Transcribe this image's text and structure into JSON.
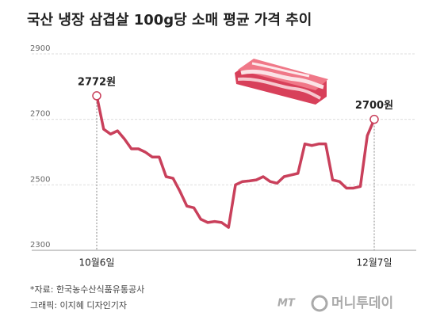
{
  "chart_data": {
    "type": "line",
    "title": "국산 냉장 삼겹살 100g당 소매 평균 가격 추이",
    "categories": [
      "10월6일",
      null,
      null,
      null,
      null,
      null,
      null,
      null,
      null,
      null,
      null,
      null,
      null,
      null,
      null,
      null,
      null,
      null,
      null,
      null,
      null,
      null,
      null,
      null,
      null,
      null,
      null,
      null,
      null,
      null,
      null,
      null,
      null,
      null,
      null,
      null,
      null,
      null,
      null,
      null,
      "12월7일"
    ],
    "series": [
      {
        "name": "삼겹살 소매 평균 가격",
        "color": "#c9405b",
        "values": [
          2772,
          2670,
          2655,
          2665,
          2640,
          2610,
          2610,
          2600,
          2585,
          2585,
          2525,
          2520,
          2480,
          2435,
          2430,
          2395,
          2385,
          2388,
          2385,
          2370,
          2500,
          2510,
          2512,
          2515,
          2525,
          2510,
          2505,
          2525,
          2530,
          2535,
          2625,
          2620,
          2625,
          2625,
          2515,
          2510,
          2490,
          2490,
          2495,
          2650,
          2700
        ],
        "value_labels": [
          "2772원",
          null,
          null,
          null,
          null,
          null,
          null,
          null,
          null,
          null,
          null,
          null,
          null,
          null,
          null,
          null,
          null,
          null,
          null,
          null,
          null,
          null,
          null,
          null,
          null,
          null,
          null,
          null,
          null,
          null,
          null,
          null,
          null,
          null,
          null,
          null,
          null,
          null,
          null,
          null,
          "2700원"
        ]
      }
    ],
    "ylim": [
      2300,
      2900
    ],
    "yticks": [
      2300,
      2500,
      2700,
      2900
    ],
    "grid": true,
    "source": "*자료: 한국농수산식품유통공사",
    "credit": "그래픽: 이지혜 디자인기자",
    "logo": {
      "mark": "MT",
      "name": "머니투데이"
    }
  }
}
